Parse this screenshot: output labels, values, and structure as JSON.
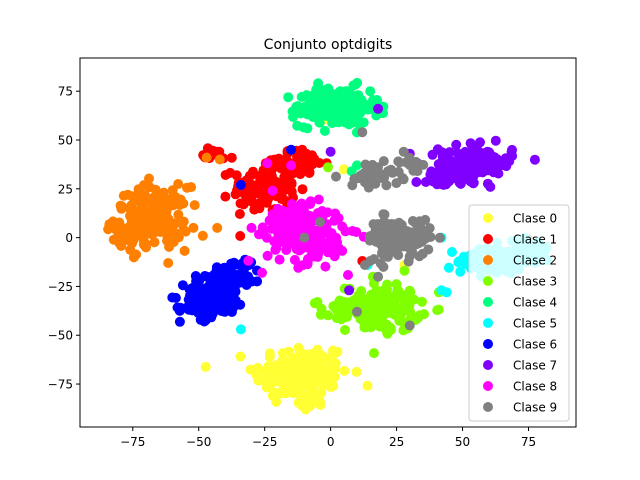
{
  "chart_data": {
    "type": "scatter",
    "title": "Conjunto optdigits",
    "xlabel": "",
    "ylabel": "",
    "xlim": [
      -95,
      93
    ],
    "ylim": [
      -97,
      92
    ],
    "xticks": [
      -75,
      -50,
      -25,
      0,
      25,
      50,
      75
    ],
    "yticks": [
      -75,
      -50,
      -25,
      0,
      25,
      50,
      75
    ],
    "grid": false,
    "legend_position": "right",
    "series": [
      {
        "name": "Clase 0",
        "color": "#ffff33",
        "clusters": [
          {
            "cx": -11,
            "cy": -70,
            "sx": 9,
            "sy": 8,
            "n": 160
          },
          {
            "cx": -8,
            "cy": -86,
            "sx": 3,
            "sy": 1.5,
            "n": 8
          }
        ],
        "points": [
          [
            -3,
            60
          ],
          [
            -25,
            20
          ],
          [
            28,
            -14
          ],
          [
            5,
            35
          ]
        ]
      },
      {
        "name": "Clase 1",
        "color": "#ff0000",
        "clusters": [
          {
            "cx": -25,
            "cy": 26,
            "sx": 6,
            "sy": 6,
            "n": 110
          },
          {
            "cx": -12,
            "cy": 38,
            "sx": 5,
            "sy": 3.5,
            "n": 55
          },
          {
            "cx": -42,
            "cy": 43,
            "sx": 3,
            "sy": 1.6,
            "n": 12
          }
        ],
        "points": [
          [
            -33,
            17
          ],
          [
            -27,
            15
          ],
          [
            -22,
            14
          ],
          [
            -18,
            24
          ],
          [
            12,
            -12
          ],
          [
            75,
            -1
          ]
        ]
      },
      {
        "name": "Clase 2",
        "color": "#ff8000",
        "clusters": [
          {
            "cx": -68,
            "cy": 10,
            "sx": 7,
            "sy": 8,
            "n": 160
          },
          {
            "cx": -76,
            "cy": 2,
            "sx": 3,
            "sy": 3,
            "n": 25
          }
        ],
        "points": [
          [
            -47,
            41
          ],
          [
            -42,
            40
          ],
          [
            -52,
            5
          ],
          [
            -43,
            5
          ],
          [
            -70,
            -5
          ],
          [
            -80,
            -3
          ]
        ]
      },
      {
        "name": "Clase 3",
        "color": "#80ff00",
        "clusters": [
          {
            "cx": 20,
            "cy": -36,
            "sx": 7,
            "sy": 6,
            "n": 130
          },
          {
            "cx": 6,
            "cy": -37,
            "sx": 5,
            "sy": 3,
            "n": 40
          }
        ],
        "points": [
          [
            -1,
            36
          ],
          [
            28,
            -17
          ],
          [
            16,
            -20
          ],
          [
            -5,
            -33
          ]
        ]
      },
      {
        "name": "Clase 4",
        "color": "#00ff80",
        "clusters": [
          {
            "cx": 3,
            "cy": 67,
            "sx": 7.5,
            "sy": 5,
            "n": 160
          },
          {
            "cx": -8,
            "cy": 65,
            "sx": 3,
            "sy": 3,
            "n": 20
          }
        ],
        "points": [
          [
            -13,
            67
          ],
          [
            -4,
            70
          ],
          [
            8,
            34
          ],
          [
            10,
            37
          ],
          [
            15,
            75
          ],
          [
            20,
            67
          ]
        ]
      },
      {
        "name": "Clase 5",
        "color": "#00ffff",
        "clusters": [
          {
            "cx": 62,
            "cy": -12,
            "sx": 7,
            "sy": 3.5,
            "n": 90
          },
          {
            "cx": 75,
            "cy": -6,
            "sx": 5,
            "sy": 3,
            "n": 40
          }
        ],
        "points": [
          [
            44,
            -28
          ],
          [
            42,
            -27
          ],
          [
            42,
            0
          ],
          [
            14,
            -14
          ],
          [
            18,
            32
          ],
          [
            -34,
            -47
          ]
        ]
      },
      {
        "name": "Clase 6",
        "color": "#0000ff",
        "clusters": [
          {
            "cx": -44,
            "cy": -30,
            "sx": 6,
            "sy": 5,
            "n": 100
          },
          {
            "cx": -36,
            "cy": -18,
            "sx": 5,
            "sy": 4,
            "n": 50
          },
          {
            "cx": -49,
            "cy": -36,
            "sx": 4,
            "sy": 3,
            "n": 40
          }
        ],
        "points": [
          [
            -15,
            45
          ],
          [
            -34,
            27
          ]
        ]
      },
      {
        "name": "Clase 7",
        "color": "#8000ff",
        "clusters": [
          {
            "cx": 55,
            "cy": 38,
            "sx": 7,
            "sy": 4.5,
            "n": 140
          },
          {
            "cx": 42,
            "cy": 32,
            "sx": 3,
            "sy": 3,
            "n": 30
          }
        ],
        "points": [
          [
            18,
            66
          ],
          [
            0,
            44
          ],
          [
            33,
            38
          ],
          [
            30,
            43
          ],
          [
            7,
            -27
          ]
        ]
      },
      {
        "name": "Clase 8",
        "color": "#ff00ff",
        "clusters": [
          {
            "cx": -9,
            "cy": 1,
            "sx": 7.5,
            "sy": 7,
            "n": 170
          },
          {
            "cx": -17,
            "cy": 10,
            "sx": 4,
            "sy": 3,
            "n": 30
          }
        ],
        "points": [
          [
            -22,
            24
          ],
          [
            -24,
            38
          ],
          [
            -15,
            37
          ],
          [
            -26,
            -18
          ],
          [
            -30,
            5
          ]
        ]
      },
      {
        "name": "Clase 9",
        "color": "#808080",
        "clusters": [
          {
            "cx": 26,
            "cy": 0,
            "sx": 6,
            "sy": 5,
            "n": 110
          },
          {
            "cx": 17,
            "cy": 32,
            "sx": 5,
            "sy": 3,
            "n": 40
          },
          {
            "cx": 30,
            "cy": 39,
            "sx": 2,
            "sy": 2,
            "n": 12
          }
        ],
        "points": [
          [
            20,
            12
          ],
          [
            15,
            -12
          ],
          [
            13,
            -14
          ],
          [
            -4,
            8
          ],
          [
            -10,
            0
          ],
          [
            12,
            54
          ],
          [
            10,
            -38
          ],
          [
            30,
            -45
          ],
          [
            18,
            -20
          ],
          [
            20,
            -15
          ]
        ]
      }
    ]
  }
}
